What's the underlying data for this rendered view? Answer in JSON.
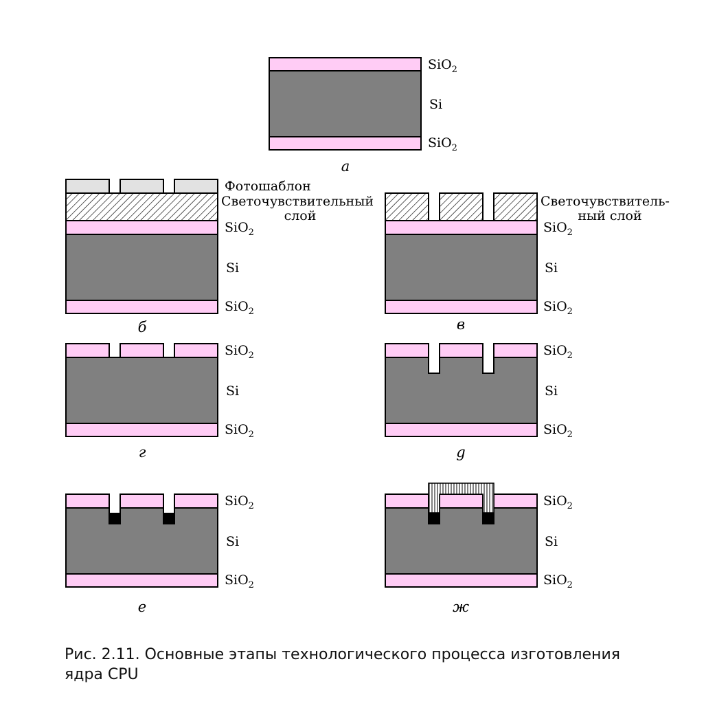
{
  "colors": {
    "oxide": "#ffccf5",
    "silicon": "#808080",
    "mask": "#e2e2e2",
    "outline": "#000000",
    "background": "#ffffff"
  },
  "layers": {
    "oxide": "SiO",
    "oxide_subscript": "2",
    "silicon": "Si",
    "photomask": "Фотошаблон",
    "photoresist_b_line1": "Светочувствительный",
    "photoresist_b_line2": "слой",
    "photoresist_c_line1": "Светочувствитель-",
    "photoresist_c_line2": "ный слой"
  },
  "panels": {
    "a": "а",
    "b": "б",
    "c": "в",
    "d": "г",
    "e": "g",
    "f": "е",
    "g": "ж"
  },
  "caption": {
    "line1": "Рис. 2.11. Основные этапы технологического процесса изготовления",
    "line2": "ядра CPU"
  }
}
